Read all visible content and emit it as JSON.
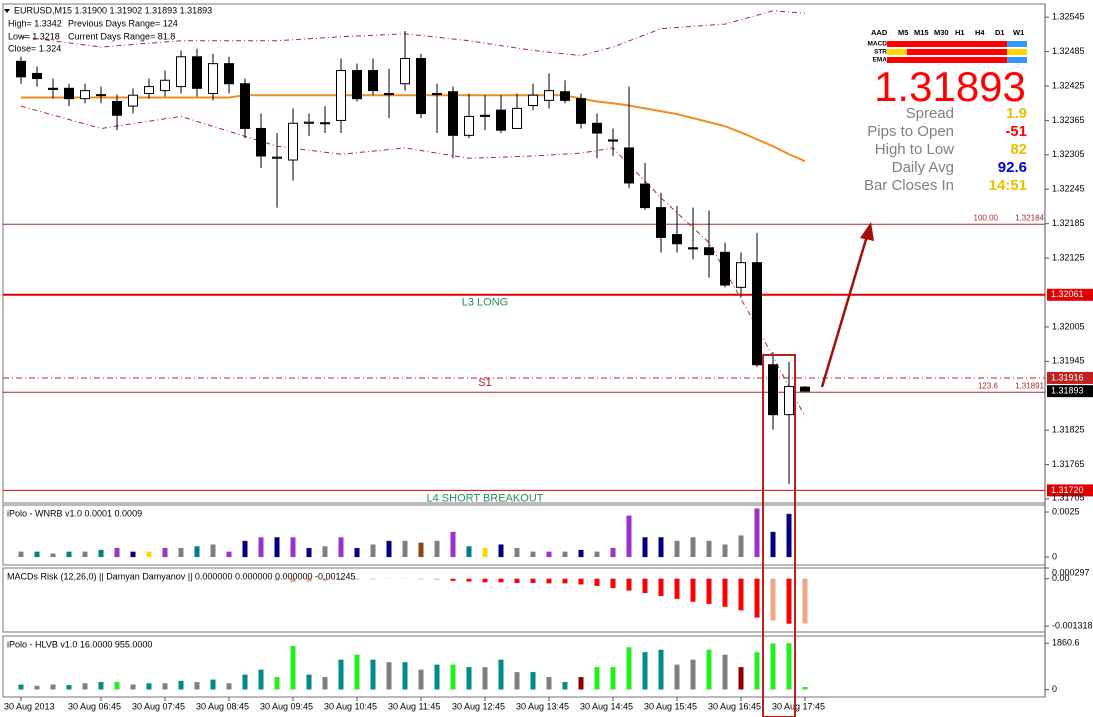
{
  "header": {
    "quote": "EURUSD,M15  1.31900 1.31902 1.31893 1.31893",
    "high": "High= 1.3342",
    "low": "Low= 1.3218",
    "close": "Close= 1.324",
    "previous_range": "Previous Days Range= 124",
    "current_range": "Current Days Range= 81.8"
  },
  "info_panel": {
    "columns": [
      "AAD",
      "M5",
      "M15",
      "M30",
      "H1",
      "H4",
      "D1",
      "W1"
    ],
    "rows": [
      {
        "name": "MACD",
        "colors": [
          "#ff0000",
          "#ff0000",
          "#ff0000",
          "#ff0000",
          "#ff0000",
          "#ff0000",
          "#3399ff"
        ]
      },
      {
        "name": "STR",
        "colors": [
          "#ffd700",
          "#ff0000",
          "#ff0000",
          "#ff0000",
          "#ff0000",
          "#ff0000",
          "#ffd700"
        ]
      },
      {
        "name": "EMA",
        "colors": [
          "#ff0000",
          "#ff0000",
          "#ff0000",
          "#ff0000",
          "#ff0000",
          "#ff0000",
          "#3399ff"
        ]
      }
    ],
    "stats": [
      {
        "label": "Spread",
        "value": 1.9,
        "color": "#e6c200"
      },
      {
        "label": "Pips to Open",
        "value": -51,
        "color": "#ff0000"
      },
      {
        "label": "High to Low",
        "value": 82,
        "color": "#e6c200"
      },
      {
        "label": "Daily Avg",
        "value": 92.6,
        "color": "#0000cc"
      },
      {
        "label": "Bar Closes In",
        "value": "14:51",
        "color": "#e6c200"
      }
    ]
  },
  "chart_data": [
    {
      "type": "candlestick",
      "up_color": "#ffffff",
      "down_color": "#000000",
      "open": [
        1.32468,
        1.32447,
        1.32421,
        1.32421,
        1.32403,
        1.32409,
        1.32398,
        1.3239,
        1.32412,
        1.32417,
        1.32424,
        1.32476,
        1.32412,
        1.32464,
        1.32429,
        1.32351,
        1.32299,
        1.32296,
        1.3236,
        1.32361,
        1.32365,
        1.32452,
        1.32452,
        1.32412,
        1.32429,
        1.32473,
        1.32412,
        1.32415,
        1.32339,
        1.32374,
        1.32383,
        1.32351,
        1.32391,
        1.324,
        1.32415,
        1.32403,
        1.3236,
        1.32331,
        1.32317,
        1.32254,
        1.32213,
        1.32166,
        1.32143,
        1.32143,
        1.32135,
        1.32074,
        1.32117,
        1.31939,
        1.31852,
        1.319
      ],
      "high": [
        1.32476,
        1.32459,
        1.32438,
        1.32429,
        1.32429,
        1.32424,
        1.3241,
        1.32421,
        1.32438,
        1.32452,
        1.32487,
        1.3249,
        1.32481,
        1.32476,
        1.32438,
        1.32377,
        1.32343,
        1.32386,
        1.32377,
        1.3239,
        1.32473,
        1.32464,
        1.32473,
        1.32455,
        1.32521,
        1.32481,
        1.32429,
        1.32424,
        1.32412,
        1.32409,
        1.32409,
        1.32412,
        1.32429,
        1.32447,
        1.32435,
        1.32412,
        1.32377,
        1.32351,
        1.32424,
        1.32291,
        1.32239,
        1.32216,
        1.32213,
        1.32208,
        1.32152,
        1.32135,
        1.32169,
        1.31961,
        1.31944,
        1.31902
      ],
      "low": [
        1.32429,
        1.32424,
        1.32403,
        1.3239,
        1.32395,
        1.32395,
        1.32348,
        1.32377,
        1.32403,
        1.32407,
        1.32412,
        1.32407,
        1.324,
        1.32412,
        1.32334,
        1.32282,
        1.32213,
        1.3226,
        1.32338,
        1.32343,
        1.32343,
        1.32398,
        1.32409,
        1.32369,
        1.32417,
        1.32369,
        1.32343,
        1.32299,
        1.32334,
        1.32348,
        1.32343,
        1.32351,
        1.32383,
        1.32386,
        1.32395,
        1.32351,
        1.32299,
        1.32303,
        1.32247,
        1.32209,
        1.32135,
        1.32135,
        1.32123,
        1.32091,
        1.32074,
        1.32057,
        1.31935,
        1.31826,
        1.31731,
        1.31893
      ],
      "close": [
        1.32441,
        1.32438,
        1.32419,
        1.32403,
        1.32417,
        1.3241,
        1.32374,
        1.32409,
        1.32424,
        1.32435,
        1.32476,
        1.32421,
        1.32464,
        1.32429,
        1.32351,
        1.32303,
        1.32301,
        1.3236,
        1.32362,
        1.3236,
        1.32452,
        1.32403,
        1.32417,
        1.3241,
        1.32473,
        1.32377,
        1.3241,
        1.32339,
        1.32372,
        1.32372,
        1.32348,
        1.32386,
        1.32409,
        1.32417,
        1.324,
        1.3236,
        1.32343,
        1.32329,
        1.32256,
        1.32213,
        1.32161,
        1.3215,
        1.32141,
        1.32131,
        1.32078,
        1.32117,
        1.31939,
        1.31852,
        1.31901,
        1.31893
      ],
      "moving_average": {
        "color": "#f28c1f",
        "values": [
          1.32405,
          1.32405,
          1.32405,
          1.32405,
          1.32405,
          1.32405,
          1.32405,
          1.32405,
          1.32405,
          1.32405,
          1.32405,
          1.32405,
          1.32405,
          1.32405,
          1.32409,
          1.32409,
          1.32409,
          1.32409,
          1.32409,
          1.32409,
          1.32409,
          1.32409,
          1.32409,
          1.32409,
          1.32409,
          1.32409,
          1.32409,
          1.32409,
          1.32409,
          1.32409,
          1.32409,
          1.32409,
          1.32409,
          1.32409,
          1.32409,
          1.32403,
          1.32398,
          1.32395,
          1.32391,
          1.32386,
          1.32381,
          1.32376,
          1.32369,
          1.32362,
          1.32355,
          1.32344,
          1.32332,
          1.3232,
          1.32306,
          1.32294
        ]
      },
      "bands": [
        {
          "color": "#a52a2a",
          "x": [
            0,
            5,
            10,
            16,
            20,
            24,
            28,
            32,
            35,
            37,
            40,
            44,
            47,
            49
          ],
          "values": [
            1.32511,
            1.32493,
            1.32504,
            1.32504,
            1.32511,
            1.32516,
            1.32504,
            1.32487,
            1.32478,
            1.32493,
            1.32525,
            1.32533,
            1.32556,
            1.32552
          ]
        },
        {
          "color": "#a52a2a",
          "x": [
            0,
            5,
            10,
            16,
            20,
            24,
            28,
            32,
            35,
            37,
            40,
            43,
            46,
            49
          ],
          "values": [
            1.3239,
            1.32351,
            1.32372,
            1.3232,
            1.32306,
            1.32317,
            1.32299,
            1.32303,
            1.32308,
            1.32317,
            1.3223,
            1.32152,
            1.32005,
            1.31849
          ]
        }
      ],
      "levels": [
        {
          "value": 1.32184,
          "tag": "100.00",
          "color": "#a52a2a",
          "width": 1,
          "style": "solid"
        },
        {
          "value": 1.32061,
          "name": "L3 LONG",
          "name_color": "#2e8b57",
          "name_position": "below",
          "color": "#e00000",
          "width": 2,
          "style": "solid",
          "axis_box": true
        },
        {
          "value": 1.31916,
          "color": "#c02020",
          "width": 1,
          "style": "dashdot",
          "axis_box": true
        },
        {
          "value": 1.31891,
          "name": "S1",
          "name_color": "#b22222",
          "name_position": "above",
          "tag": "123.6",
          "color": "#a52a2a",
          "width": 1,
          "style": "solid"
        },
        {
          "value": 1.3172,
          "value_label": "1.31720",
          "name": "L4 SHORT BREAKOUT",
          "name_color": "#2e8b57",
          "name_position": "below",
          "color": "#e00000",
          "width": 1,
          "style": "solid",
          "axis_box": true
        }
      ],
      "ylim": [
        1.31698,
        1.32568
      ],
      "yticks": [
        1.32545,
        1.32485,
        1.32425,
        1.32365,
        1.32305,
        1.32245,
        1.32185,
        1.32125,
        1.32005,
        1.31945,
        1.31825,
        1.31765,
        1.31705
      ],
      "xticks": [
        {
          "value": 0,
          "label": "30 Aug 2013"
        },
        {
          "value": 5,
          "label": "30 Aug 06:45"
        },
        {
          "value": 9,
          "label": "30 Aug 07:45"
        },
        {
          "value": 13,
          "label": "30 Aug 08:45"
        },
        {
          "value": 17,
          "label": "30 Aug 09:45"
        },
        {
          "value": 21,
          "label": "30 Aug 10:45"
        },
        {
          "value": 25,
          "label": "30 Aug 11:45"
        },
        {
          "value": 29,
          "label": "30 Aug 12:45"
        },
        {
          "value": 33,
          "label": "30 Aug 13:45"
        },
        {
          "value": 37,
          "label": "30 Aug 14:45"
        },
        {
          "value": 41,
          "label": "30 Aug 15:45"
        },
        {
          "value": 45,
          "label": "30 Aug 16:45"
        },
        {
          "value": 49,
          "label": "30 Aug 17:45"
        }
      ]
    },
    {
      "type": "bar",
      "title": "iPolo - WNRB v1.0 0.0001 0.0009",
      "ylim": [
        -0.00044,
        0.00289
      ],
      "yticks": [
        0,
        0.0025
      ],
      "values": [
        0.0003,
        0.0003,
        0.0002,
        0.0003,
        0.0003,
        0.0004,
        0.0005,
        0.0003,
        0.0003,
        0.0005,
        0.0005,
        0.0006,
        0.0007,
        0.0003,
        0.0009,
        0.0011,
        0.0011,
        0.0011,
        0.0005,
        0.0006,
        0.0011,
        0.0005,
        0.0007,
        0.0009,
        0.0009,
        0.0008,
        0.0009,
        0.0014,
        0.0006,
        0.0005,
        0.0007,
        0.0005,
        0.0003,
        0.0003,
        0.0003,
        0.0004,
        0.0003,
        0.0005,
        0.0023,
        0.0011,
        0.0011,
        0.0009,
        0.0011,
        0.0009,
        0.0007,
        0.0012,
        0.0027,
        0.0014,
        0.0024,
        0
      ],
      "colors": [
        "#808080",
        "#008080",
        "#808080",
        "#008080",
        "#808080",
        "#008080",
        "#9932cc",
        "#000080",
        "#ffd700",
        "#9932cc",
        "#808080",
        "#008080",
        "#808080",
        "#9932cc",
        "#000080",
        "#9932cc",
        "#000080",
        "#9932cc",
        "#000080",
        "#808080",
        "#9932cc",
        "#000080",
        "#808080",
        "#000080",
        "#808080",
        "#8b4513",
        "#808080",
        "#9932cc",
        "#008080",
        "#ffd700",
        "#000080",
        "#808080",
        "#808080",
        "#9932cc",
        "#808080",
        "#000080",
        "#808080",
        "#9932cc",
        "#9932cc",
        "#000080",
        "#000080",
        "#808080",
        "#808080",
        "#808080",
        "#808080",
        "#808080",
        "#9932cc",
        "#000080",
        "#000080",
        "#808080"
      ]
    },
    {
      "type": "bar",
      "title": "MACDs Risk (12,26,0) || Damyan Damyanov || 0.000000 0.000000 0.000000 -0.001245",
      "ylim": [
        -0.00148,
        0.000297
      ],
      "yticks": [
        0.000297,
        {
          "value": 0,
          "label": "0.00"
        },
        -0.001318
      ],
      "values": [
        0,
        0,
        0,
        0,
        0,
        0,
        0,
        0,
        0,
        0,
        0,
        0,
        0,
        0,
        0,
        0,
        -5e-05,
        -0.0001,
        -8e-05,
        -6e-05,
        -4e-05,
        -3e-05,
        -2e-05,
        -1e-05,
        -1e-05,
        -2e-05,
        -3e-05,
        -6e-05,
        -8e-05,
        -0.0001,
        -0.0001,
        -0.00012,
        -0.00012,
        -0.00013,
        -0.00013,
        -0.00016,
        -0.0002,
        -0.00026,
        -0.00033,
        -0.0004,
        -0.00048,
        -0.00056,
        -0.00064,
        -0.0007,
        -0.00078,
        -0.00088,
        -0.00108,
        -0.00116,
        -0.00125,
        -0.001245
      ],
      "colors": [
        "#f4a582",
        "#f4a582",
        "#f4a582",
        "#f4a582",
        "#f4a582",
        "#f4a582",
        "#f4a582",
        "#f4a582",
        "#f4a582",
        "#f4a582",
        "#f4a582",
        "#f4a582",
        "#f4a582",
        "#f4a582",
        "#f4a582",
        "#f4a582",
        "#f4a582",
        "#f4a582",
        "#f4a582",
        "#f4a582",
        "#f4a582",
        "#f4a582",
        "#f4a582",
        "#f4a582",
        "#f4a582",
        "#f4a582",
        "#f4a582",
        "#ff0000",
        "#ff0000",
        "#ff0000",
        "#ff0000",
        "#ff0000",
        "#ff0000",
        "#ff0000",
        "#ff0000",
        "#ff0000",
        "#ff0000",
        "#ff0000",
        "#ff0000",
        "#ff0000",
        "#ff0000",
        "#ff0000",
        "#ff0000",
        "#ff0000",
        "#ff0000",
        "#ff0000",
        "#ff0000",
        "#f4a582",
        "#ff0000",
        "#f4a582"
      ]
    },
    {
      "type": "bar",
      "title": "iPolo - HLVB v1.0 16.0000 955.0000",
      "ylim": [
        -300,
        2150
      ],
      "yticks": [
        1860.6,
        0
      ],
      "values": [
        200,
        150,
        200,
        180,
        250,
        300,
        300,
        200,
        250,
        250,
        350,
        300,
        400,
        250,
        600,
        800,
        500,
        1750,
        600,
        500,
        1200,
        1400,
        1200,
        1100,
        1100,
        800,
        1000,
        1000,
        900,
        900,
        1200,
        700,
        700,
        500,
        300,
        500,
        900,
        900,
        1700,
        1500,
        1600,
        1000,
        1200,
        1600,
        1400,
        900,
        1500,
        1850,
        1860.6,
        100
      ],
      "colors": [
        "#008b8b",
        "#808080",
        "#808080",
        "#008b8b",
        "#808080",
        "#008b8b",
        "#22ee22",
        "#808080",
        "#008b8b",
        "#808080",
        "#008b8b",
        "#808080",
        "#008b8b",
        "#808080",
        "#008b8b",
        "#008b8b",
        "#22ee22",
        "#22ee22",
        "#008b8b",
        "#808080",
        "#008b8b",
        "#22ee22",
        "#008b8b",
        "#808080",
        "#008b8b",
        "#808080",
        "#008b8b",
        "#22ee22",
        "#008b8b",
        "#808080",
        "#008b8b",
        "#808080",
        "#008b8b",
        "#808080",
        "#008b8b",
        "#8b0000",
        "#22ee22",
        "#22ee22",
        "#22ee22",
        "#008b8b",
        "#008b8b",
        "#808080",
        "#808080",
        "#22ee22",
        "#808080",
        "#8b0000",
        "#22ee22",
        "#22ee22",
        "#22ee22",
        "#22ee22"
      ]
    }
  ]
}
